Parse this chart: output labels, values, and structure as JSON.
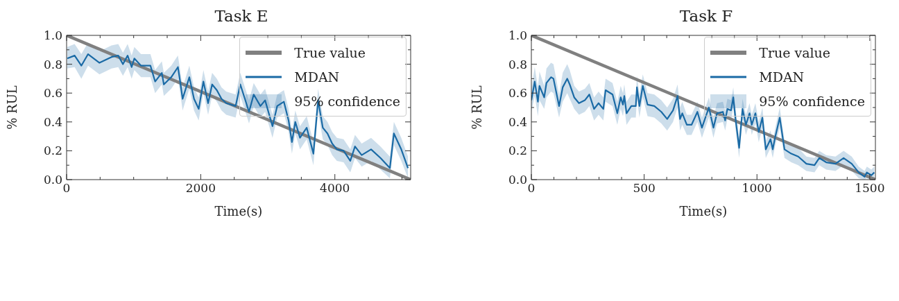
{
  "chart_data": [
    {
      "type": "line",
      "title": "Task E",
      "xlabel": "Time(s)",
      "ylabel": "% RUL",
      "annotations": [
        "95% confidence"
      ],
      "legend": "top right",
      "xlim": [
        0,
        5130
      ],
      "ylim": [
        0,
        1
      ],
      "xticks": [
        0,
        {
          "value": 500,
          "label": null
        },
        {
          "value": 1000,
          "label": null
        },
        {
          "value": 1500,
          "label": null
        },
        2000,
        {
          "value": 2500,
          "label": null
        },
        {
          "value": 3000,
          "label": null
        },
        {
          "value": 3500,
          "label": null
        },
        4000,
        {
          "value": 4500,
          "label": null
        },
        {
          "value": 5000,
          "label": null
        }
      ],
      "yticks": [
        {
          "value": 0,
          "label": "0.0"
        },
        {
          "value": 0.1,
          "label": null
        },
        0.2,
        {
          "value": 0.3,
          "label": null
        },
        0.4,
        {
          "value": 0.5,
          "label": null
        },
        0.6,
        {
          "value": 0.7,
          "label": null
        },
        0.8,
        {
          "value": 0.9,
          "label": null
        },
        {
          "value": 1,
          "label": "1.0"
        }
      ],
      "series": [
        {
          "name": "True value",
          "color": "#808080",
          "x": [
            0,
            5130
          ],
          "values": [
            1,
            0
          ]
        },
        {
          "name": "MDAN",
          "color": "#1a6aa5",
          "x": [
            10,
            120,
            220,
            320,
            490,
            670,
            770,
            840,
            910,
            970,
            1010,
            1110,
            1250,
            1320,
            1420,
            1450,
            1560,
            1660,
            1690,
            1730,
            1830,
            1900,
            1970,
            2040,
            2110,
            2170,
            2240,
            2310,
            2380,
            2520,
            2590,
            2720,
            2790,
            2890,
            2960,
            3070,
            3140,
            3240,
            3310,
            3360,
            3410,
            3480,
            3580,
            3680,
            3750,
            3820,
            3890,
            3960,
            4030,
            4130,
            4230,
            4300,
            4400,
            4540,
            4680,
            4820,
            4880,
            4990,
            5090
          ],
          "values": [
            0.84,
            0.86,
            0.79,
            0.87,
            0.81,
            0.85,
            0.86,
            0.8,
            0.86,
            0.78,
            0.84,
            0.79,
            0.79,
            0.68,
            0.74,
            0.66,
            0.71,
            0.78,
            0.69,
            0.56,
            0.71,
            0.56,
            0.49,
            0.68,
            0.53,
            0.66,
            0.62,
            0.56,
            0.53,
            0.51,
            0.66,
            0.47,
            0.59,
            0.51,
            0.55,
            0.37,
            0.51,
            0.54,
            0.41,
            0.26,
            0.4,
            0.29,
            0.36,
            0.18,
            0.55,
            0.36,
            0.32,
            0.25,
            0.21,
            0.2,
            0.13,
            0.23,
            0.17,
            0.21,
            0.15,
            0.08,
            0.32,
            0.21,
            0.08
          ],
          "lower": [
            0.77,
            0.78,
            0.7,
            0.79,
            0.73,
            0.77,
            0.78,
            0.72,
            0.78,
            0.7,
            0.76,
            0.71,
            0.71,
            0.6,
            0.66,
            0.58,
            0.63,
            0.7,
            0.61,
            0.48,
            0.63,
            0.48,
            0.41,
            0.6,
            0.45,
            0.58,
            0.54,
            0.48,
            0.45,
            0.43,
            0.58,
            0.39,
            0.51,
            0.43,
            0.47,
            0.29,
            0.43,
            0.46,
            0.33,
            0.18,
            0.32,
            0.21,
            0.28,
            0.1,
            0.47,
            0.28,
            0.24,
            0.17,
            0.13,
            0.12,
            0.05,
            0.15,
            0.09,
            0.13,
            0.07,
            0.01,
            0.24,
            0.13,
            0.01
          ],
          "upper": [
            0.92,
            0.94,
            0.87,
            0.95,
            0.89,
            0.93,
            0.94,
            0.88,
            0.94,
            0.86,
            0.92,
            0.87,
            0.87,
            0.76,
            0.82,
            0.74,
            0.79,
            0.86,
            0.77,
            0.64,
            0.79,
            0.64,
            0.57,
            0.76,
            0.61,
            0.74,
            0.7,
            0.64,
            0.61,
            0.59,
            0.74,
            0.55,
            0.67,
            0.59,
            0.63,
            0.45,
            0.59,
            0.62,
            0.49,
            0.34,
            0.48,
            0.37,
            0.44,
            0.26,
            0.63,
            0.44,
            0.4,
            0.33,
            0.29,
            0.28,
            0.21,
            0.31,
            0.25,
            0.29,
            0.23,
            0.16,
            0.4,
            0.29,
            0.16
          ]
        }
      ]
    },
    {
      "type": "line",
      "title": "Task F",
      "xlabel": "Time(s)",
      "ylabel": "% RUL",
      "annotations": [
        "95% confidence"
      ],
      "legend": "top right",
      "xlim": [
        0,
        1525
      ],
      "ylim": [
        0,
        1
      ],
      "xticks": [
        0,
        {
          "value": 100,
          "label": null
        },
        {
          "value": 200,
          "label": null
        },
        {
          "value": 300,
          "label": null
        },
        {
          "value": 400,
          "label": null
        },
        500,
        {
          "value": 600,
          "label": null
        },
        {
          "value": 700,
          "label": null
        },
        {
          "value": 800,
          "label": null
        },
        {
          "value": 900,
          "label": null
        },
        1000,
        {
          "value": 1100,
          "label": null
        },
        {
          "value": 1200,
          "label": null
        },
        {
          "value": 1300,
          "label": null
        },
        {
          "value": 1400,
          "label": null
        },
        1500
      ],
      "yticks": [
        {
          "value": 0,
          "label": "0.0"
        },
        {
          "value": 0.1,
          "label": null
        },
        0.2,
        {
          "value": 0.3,
          "label": null
        },
        0.4,
        {
          "value": 0.5,
          "label": null
        },
        0.6,
        {
          "value": 0.7,
          "label": null
        },
        0.8,
        {
          "value": 0.9,
          "label": null
        },
        {
          "value": 1,
          "label": "1.0"
        }
      ],
      "series": [
        {
          "name": "True value",
          "color": "#808080",
          "x": [
            0,
            1525
          ],
          "values": [
            1,
            0
          ]
        },
        {
          "name": "MDAN",
          "color": "#1a6aa5",
          "x": [
            0,
            15,
            29,
            36,
            57,
            67,
            87,
            98,
            123,
            139,
            159,
            170,
            190,
            211,
            237,
            257,
            278,
            298,
            319,
            329,
            360,
            381,
            396,
            406,
            412,
            422,
            443,
            463,
            468,
            479,
            494,
            515,
            545,
            576,
            602,
            628,
            648,
            659,
            669,
            689,
            710,
            736,
            756,
            787,
            807,
            823,
            849,
            859,
            869,
            885,
            895,
            905,
            921,
            936,
            951,
            967,
            977,
            993,
            1008,
            1024,
            1039,
            1060,
            1070,
            1080,
            1101,
            1122,
            1152,
            1183,
            1219,
            1255,
            1276,
            1307,
            1348,
            1384,
            1420,
            1451,
            1477,
            1487,
            1507,
            1520
          ],
          "values": [
            0.55,
            0.68,
            0.54,
            0.65,
            0.57,
            0.67,
            0.71,
            0.7,
            0.51,
            0.64,
            0.7,
            0.66,
            0.57,
            0.53,
            0.55,
            0.59,
            0.49,
            0.53,
            0.49,
            0.62,
            0.59,
            0.46,
            0.57,
            0.52,
            0.58,
            0.46,
            0.51,
            0.51,
            0.64,
            0.51,
            0.65,
            0.52,
            0.51,
            0.47,
            0.42,
            0.48,
            0.58,
            0.42,
            0.46,
            0.38,
            0.38,
            0.47,
            0.36,
            0.5,
            0.36,
            0.46,
            0.47,
            0.41,
            0.49,
            0.48,
            0.57,
            0.42,
            0.22,
            0.49,
            0.38,
            0.46,
            0.38,
            0.46,
            0.33,
            0.43,
            0.21,
            0.28,
            0.21,
            0.29,
            0.43,
            0.21,
            0.18,
            0.16,
            0.11,
            0.1,
            0.15,
            0.12,
            0.11,
            0.15,
            0.11,
            0.05,
            0.02,
            0.05,
            0.03,
            0.05
          ],
          "lower": [
            0.47,
            0.58,
            0.44,
            0.55,
            0.49,
            0.57,
            0.61,
            0.6,
            0.43,
            0.54,
            0.6,
            0.56,
            0.49,
            0.45,
            0.47,
            0.51,
            0.41,
            0.45,
            0.41,
            0.54,
            0.51,
            0.38,
            0.49,
            0.44,
            0.5,
            0.38,
            0.43,
            0.43,
            0.56,
            0.43,
            0.57,
            0.44,
            0.43,
            0.39,
            0.34,
            0.4,
            0.5,
            0.34,
            0.38,
            0.31,
            0.31,
            0.4,
            0.29,
            0.43,
            0.29,
            0.39,
            0.4,
            0.34,
            0.42,
            0.41,
            0.5,
            0.35,
            0.15,
            0.42,
            0.31,
            0.39,
            0.31,
            0.39,
            0.26,
            0.36,
            0.15,
            0.22,
            0.15,
            0.23,
            0.36,
            0.15,
            0.12,
            0.1,
            0.06,
            0.05,
            0.1,
            0.07,
            0.06,
            0.1,
            0.06,
            0.01,
            0.0,
            0.01,
            0.0,
            0.01
          ],
          "upper": [
            0.63,
            0.78,
            0.64,
            0.75,
            0.65,
            0.77,
            0.81,
            0.8,
            0.59,
            0.74,
            0.8,
            0.76,
            0.65,
            0.61,
            0.63,
            0.67,
            0.57,
            0.61,
            0.57,
            0.7,
            0.67,
            0.54,
            0.65,
            0.6,
            0.66,
            0.54,
            0.59,
            0.59,
            0.72,
            0.59,
            0.73,
            0.6,
            0.59,
            0.55,
            0.5,
            0.56,
            0.66,
            0.5,
            0.54,
            0.45,
            0.45,
            0.54,
            0.43,
            0.57,
            0.43,
            0.53,
            0.54,
            0.48,
            0.56,
            0.55,
            0.64,
            0.49,
            0.29,
            0.56,
            0.45,
            0.53,
            0.45,
            0.53,
            0.4,
            0.5,
            0.27,
            0.34,
            0.27,
            0.35,
            0.5,
            0.27,
            0.24,
            0.22,
            0.16,
            0.15,
            0.2,
            0.17,
            0.16,
            0.2,
            0.16,
            0.09,
            0.06,
            0.09,
            0.07,
            0.09
          ]
        }
      ]
    }
  ]
}
